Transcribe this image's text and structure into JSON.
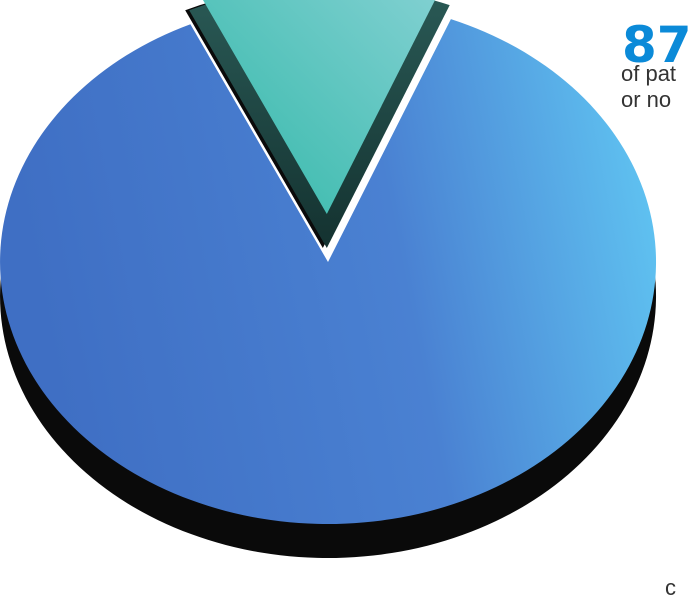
{
  "chart_data": {
    "type": "pie",
    "style": "3d-exploded",
    "slices": [
      {
        "value": 87,
        "color": "#4f86d6"
      },
      {
        "value": 13,
        "color": "#4cc0b5",
        "exploded": true
      }
    ],
    "annotations": {
      "value_text": "87",
      "lines": [
        "of pat",
        "or no",
        "c"
      ]
    }
  },
  "colors": {
    "accent_blue": "#0b8ad8",
    "body_text": "#333333",
    "major_slice_light": "#62cbf5",
    "major_slice_dark": "#3f6fc4",
    "minor_slice_light": "#8ad3d6",
    "minor_slice_dark": "#2fb7a7",
    "minor_slice_side": "#1e4a48",
    "shadow": "#0a0a0a"
  }
}
